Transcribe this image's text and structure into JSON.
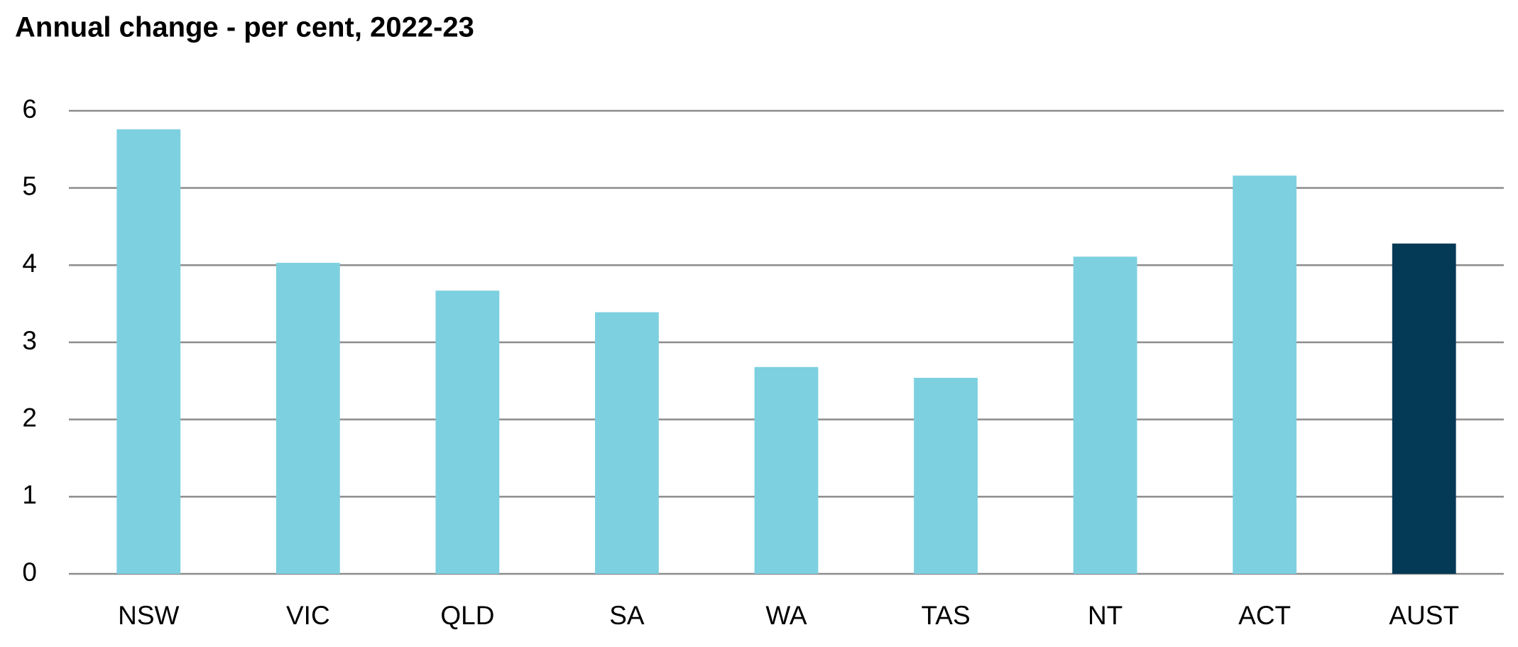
{
  "chart_data": {
    "type": "bar",
    "title": "Annual change  - per cent, 2022-23",
    "categories": [
      "NSW",
      "VIC",
      "QLD",
      "SA",
      "WA",
      "TAS",
      "NT",
      "ACT",
      "AUST"
    ],
    "values": [
      5.76,
      4.03,
      3.67,
      3.39,
      2.68,
      2.54,
      4.11,
      5.16,
      4.28
    ],
    "colors": [
      "#7dd0e0",
      "#7dd0e0",
      "#7dd0e0",
      "#7dd0e0",
      "#7dd0e0",
      "#7dd0e0",
      "#7dd0e0",
      "#7dd0e0",
      "#053a57"
    ],
    "ylim": [
      0,
      6
    ],
    "yticks": [
      0,
      1,
      2,
      3,
      4,
      5,
      6
    ],
    "grid": true
  }
}
